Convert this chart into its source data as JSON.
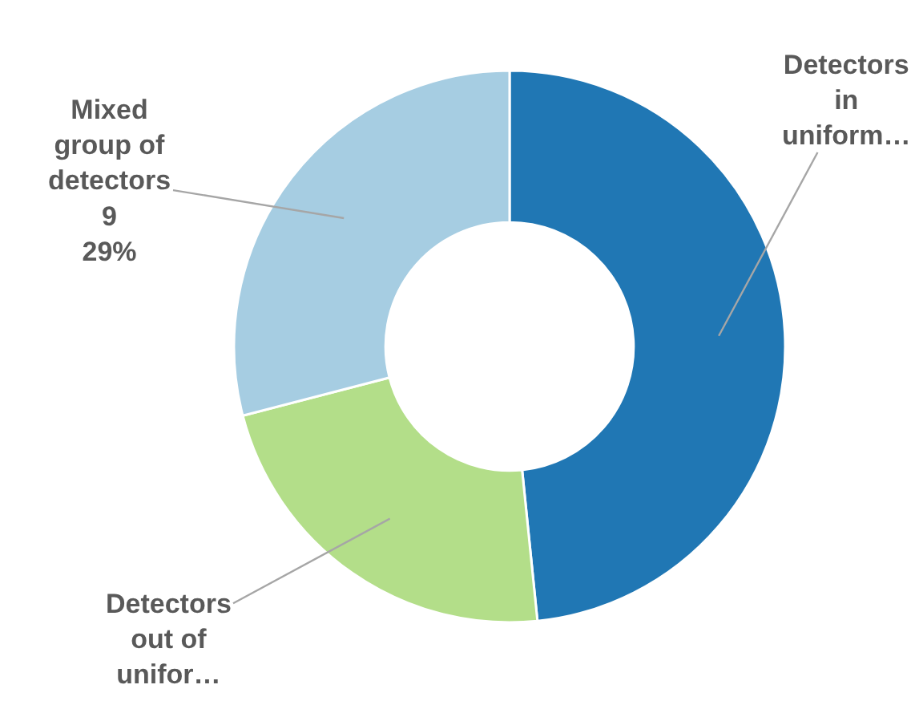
{
  "chart_data": {
    "type": "donut",
    "categories": [
      "Detectors in uniform…",
      "Detectors out of unifor…",
      "Mixed group of detectors"
    ],
    "values": [
      15,
      7,
      9
    ],
    "colors": [
      "#2077b4",
      "#b3de89",
      "#a6cde2"
    ],
    "value_labels": [
      null,
      null,
      "9\n29%"
    ],
    "legend": false
  }
}
